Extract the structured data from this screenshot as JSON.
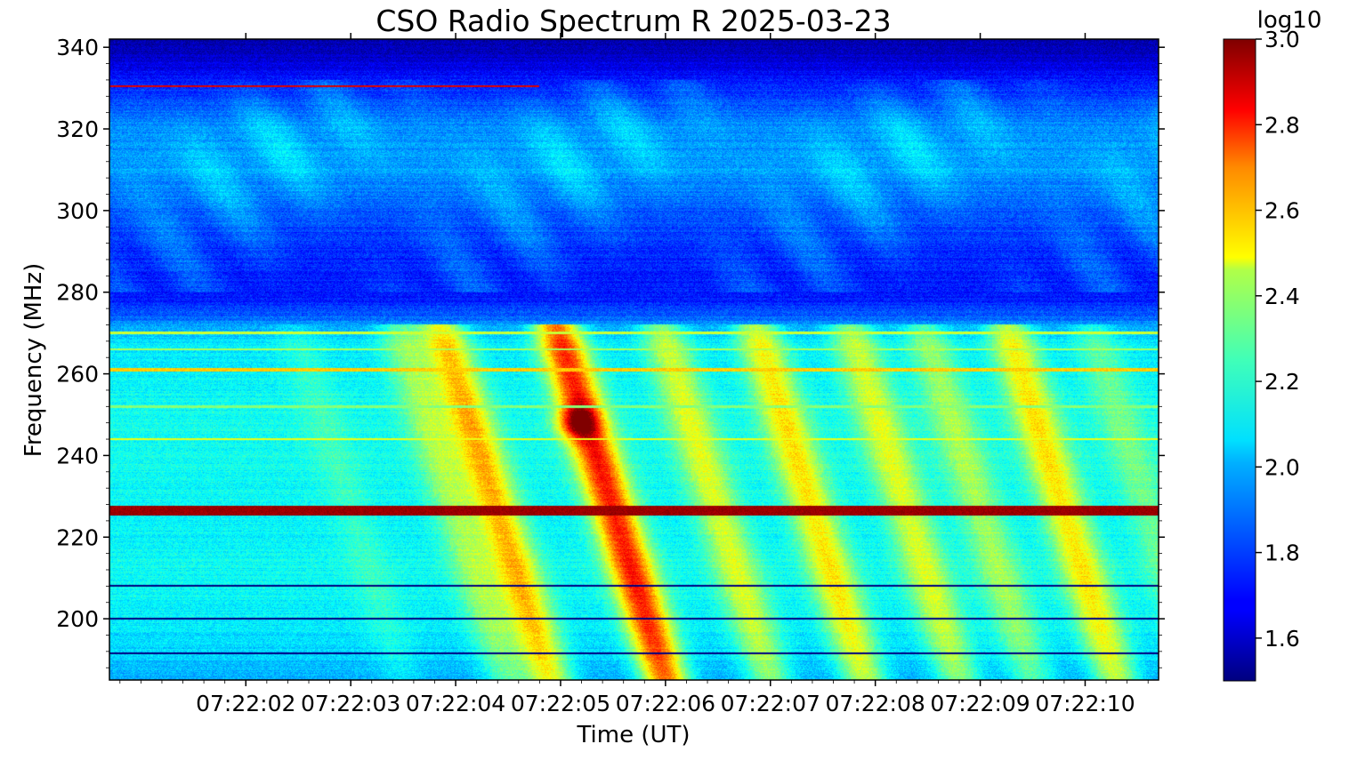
{
  "chart_data": {
    "type": "heatmap",
    "title": "CSO Radio Spectrum R 2025-03-23",
    "xlabel": "Time (UT)",
    "ylabel": "Frequency (MHz)",
    "x_ticks": [
      "07:22:02",
      "07:22:03",
      "07:22:04",
      "07:22:05",
      "07:22:06",
      "07:22:07",
      "07:22:08",
      "07:22:09",
      "07:22:10"
    ],
    "x_range_seconds_after_07_22_00": [
      0.7,
      10.7
    ],
    "ylim": [
      185,
      342
    ],
    "y_ticks": [
      200,
      220,
      240,
      260,
      280,
      300,
      320,
      340
    ],
    "colorbar": {
      "label": "log10",
      "range": [
        1.5,
        3.0
      ],
      "ticks": [
        "1.6",
        "1.8",
        "2.0",
        "2.2",
        "2.4",
        "2.6",
        "2.8",
        "3.0"
      ],
      "tick_values": [
        1.6,
        1.8,
        2.0,
        2.2,
        2.4,
        2.6,
        2.8,
        3.0
      ],
      "colormap": "jet"
    },
    "background_level": {
      "freq_mhz": [
        185,
        195,
        205,
        215,
        223,
        235,
        250,
        260,
        268,
        272,
        278,
        290,
        300,
        310,
        320,
        330,
        338,
        342
      ],
      "log10_level": [
        1.95,
        2.02,
        2.06,
        2.07,
        2.05,
        2.08,
        2.08,
        2.06,
        2.03,
        1.9,
        1.72,
        1.74,
        1.82,
        1.92,
        1.9,
        1.75,
        1.6,
        1.55
      ]
    },
    "drifting_bursts": [
      {
        "t_center_s": 2.6,
        "log10_peak": 2.05
      },
      {
        "t_center_s": 3.6,
        "log10_peak": 2.15
      },
      {
        "t_center_s": 4.0,
        "log10_peak": 2.3
      },
      {
        "t_center_s": 5.1,
        "log10_peak": 2.45
      },
      {
        "t_center_s": 6.1,
        "log10_peak": 2.2
      },
      {
        "t_center_s": 7.0,
        "log10_peak": 2.25
      },
      {
        "t_center_s": 7.9,
        "log10_peak": 2.2
      },
      {
        "t_center_s": 8.6,
        "log10_peak": 2.15
      },
      {
        "t_center_s": 9.4,
        "log10_peak": 2.25
      },
      {
        "t_center_s": 10.2,
        "log10_peak": 2.1
      }
    ],
    "hot_spot": {
      "t_s": 5.15,
      "freq_mhz": 248,
      "log10_value": 2.75
    },
    "interference_lines": [
      {
        "freq_mhz": 226.5,
        "log10_value": 3.0,
        "width_mhz": 2.4
      },
      {
        "freq_mhz": 261.0,
        "log10_value": 2.55,
        "width_mhz": 1.0
      },
      {
        "freq_mhz": 244.0,
        "log10_value": 2.45,
        "width_mhz": 0.6
      },
      {
        "freq_mhz": 270.0,
        "log10_value": 2.4,
        "width_mhz": 0.6
      },
      {
        "freq_mhz": 266.0,
        "log10_value": 2.35,
        "width_mhz": 0.6
      },
      {
        "freq_mhz": 252.0,
        "log10_value": 2.3,
        "width_mhz": 0.6
      },
      {
        "freq_mhz": 208.0,
        "log10_value": 1.5,
        "width_mhz": 0.4
      },
      {
        "freq_mhz": 200.0,
        "log10_value": 1.5,
        "width_mhz": 0.4
      },
      {
        "freq_mhz": 191.5,
        "log10_value": 1.5,
        "width_mhz": 0.4
      },
      {
        "freq_mhz": 330.5,
        "log10_value": 2.9,
        "width_mhz": 0.4,
        "t_end_s": 4.8
      }
    ]
  }
}
